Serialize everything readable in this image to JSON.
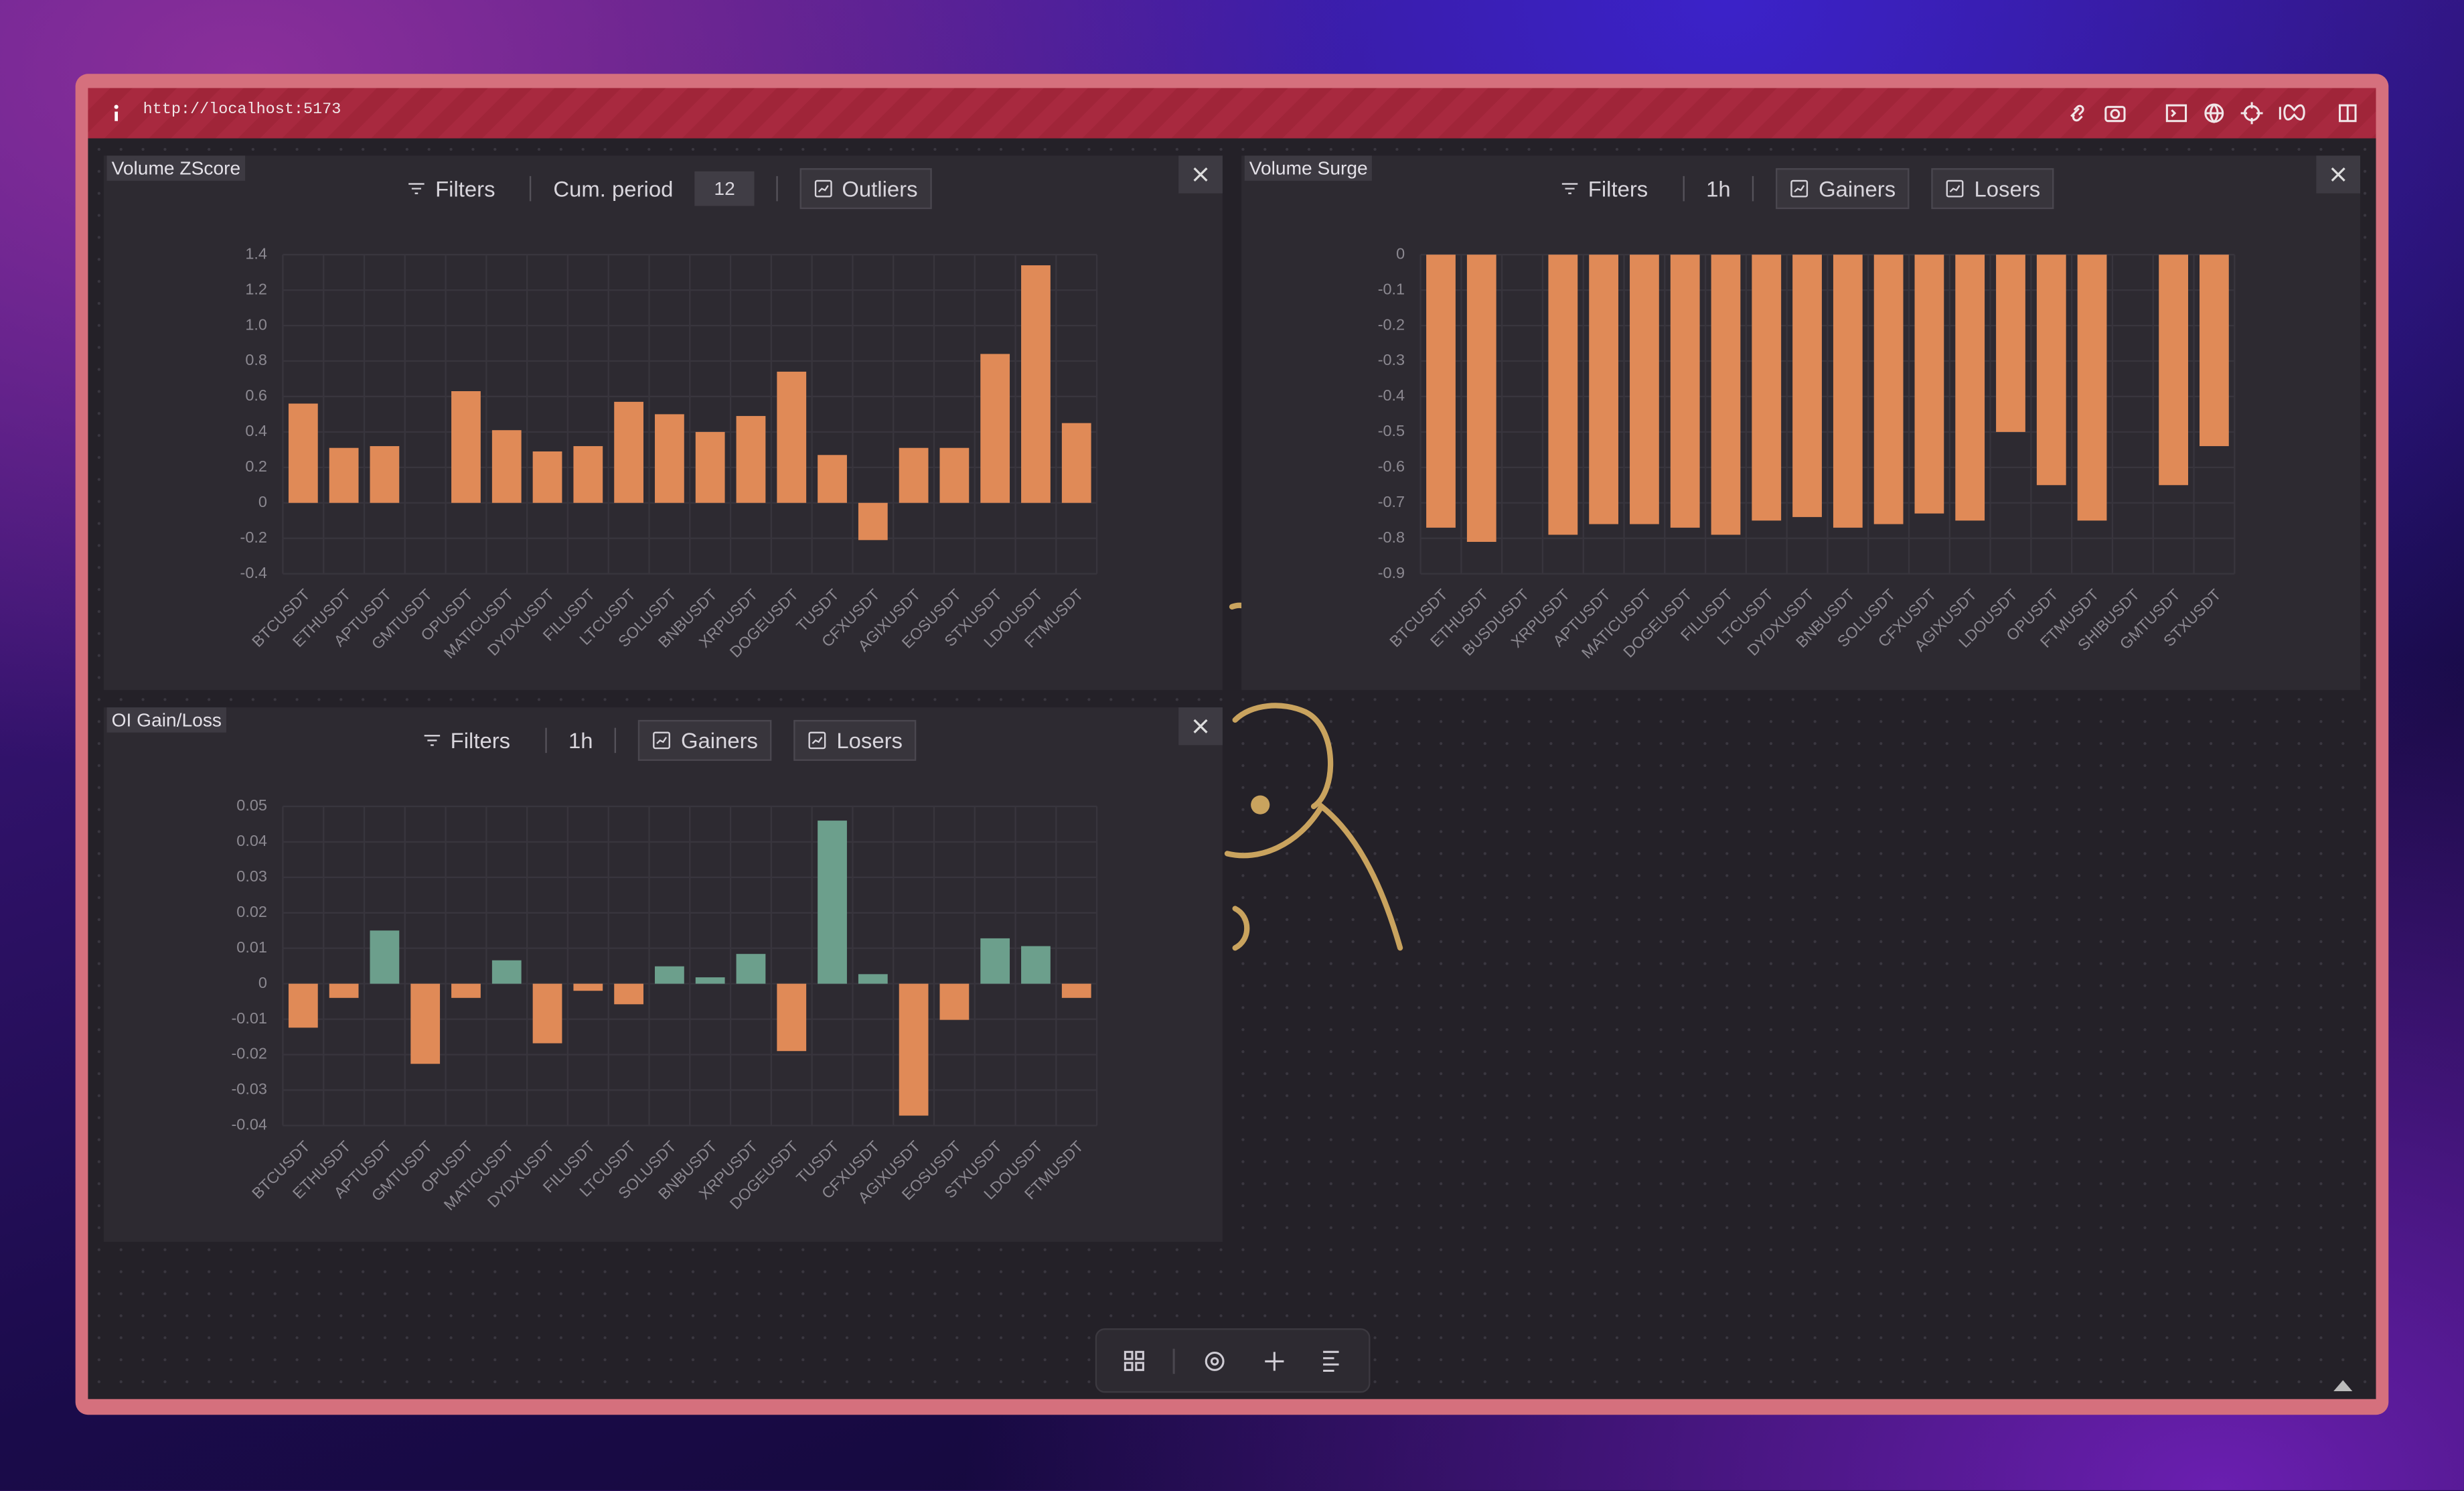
{
  "ui": {
    "url": "http://localhost:5173",
    "panels": [
      {
        "filters": "Filters",
        "period_label": "Cum. period",
        "period_value": "12",
        "buttons": [
          "Outliers"
        ]
      },
      {
        "filters": "Filters",
        "timeframe": "1h",
        "buttons": [
          "Gainers",
          "Losers"
        ]
      },
      {
        "filters": "Filters",
        "timeframe": "1h",
        "buttons": [
          "Gainers",
          "Losers"
        ]
      }
    ]
  },
  "chart_data": [
    {
      "type": "bar",
      "title": "Volume ZScore",
      "categories": [
        "BTCUSDT",
        "ETHUSDT",
        "APTUSDT",
        "GMTUSDT",
        "OPUSDT",
        "MATICUSDT",
        "DYDXUSDT",
        "FILUSDT",
        "LTCUSDT",
        "SOLUSDT",
        "BNBUSDT",
        "XRPUSDT",
        "DOGEUSDT",
        "TUSDT",
        "CFXUSDT",
        "AGIXUSDT",
        "EOSUSDT",
        "STXUSDT",
        "LDOUSDT",
        "FTMUSDT"
      ],
      "values": [
        0.56,
        0.31,
        0.32,
        0,
        0.63,
        0.41,
        0.29,
        0.32,
        0.57,
        0.5,
        0.4,
        0.49,
        0.74,
        0.27,
        -0.21,
        0.31,
        0.31,
        0.84,
        1.34,
        0.45
      ],
      "color": "#e08a57",
      "ylim": [
        -0.4,
        1.4
      ],
      "yticks": [
        -0.4,
        -0.2,
        0,
        0.2,
        0.4,
        0.6,
        0.8,
        {
          "value": 1,
          "label": "1.0"
        },
        1.2,
        1.4
      ],
      "grid": true
    },
    {
      "type": "bar",
      "title": "Volume Surge",
      "categories": [
        "BTCUSDT",
        "ETHUSDT",
        "BUSDUSDT",
        "XRPUSDT",
        "APTUSDT",
        "MATICUSDT",
        "DOGEUSDT",
        "FILUSDT",
        "LTCUSDT",
        "DYDXUSDT",
        "BNBUSDT",
        "SOLUSDT",
        "CFXUSDT",
        "AGIXUSDT",
        "LDOUSDT",
        "OPUSDT",
        "FTMUSDT",
        "SHIBUSDT",
        "GMTUSDT",
        "STXUSDT"
      ],
      "values": [
        -0.77,
        -0.81,
        0,
        -0.79,
        -0.76,
        -0.76,
        -0.77,
        -0.79,
        -0.75,
        -0.74,
        -0.77,
        -0.76,
        -0.73,
        -0.75,
        -0.5,
        -0.65,
        -0.75,
        0,
        -0.65,
        -0.54
      ],
      "color": "#e08a57",
      "ylim": [
        -0.9,
        0
      ],
      "yticks": [
        -0.9,
        -0.8,
        -0.7,
        -0.6,
        -0.5,
        -0.4,
        -0.3,
        -0.2,
        -0.1,
        0
      ],
      "grid": true
    },
    {
      "type": "bar",
      "title": "OI Gain/Loss",
      "categories": [
        "BTCUSDT",
        "ETHUSDT",
        "APTUSDT",
        "GMTUSDT",
        "OPUSDT",
        "MATICUSDT",
        "DYDXUSDT",
        "FILUSDT",
        "LTCUSDT",
        "SOLUSDT",
        "BNBUSDT",
        "XRPUSDT",
        "DOGEUSDT",
        "TUSDT",
        "CFXUSDT",
        "AGIXUSDT",
        "EOSUSDT",
        "STXUSDT",
        "LDOUSDT",
        "FTMUSDT"
      ],
      "values": [
        -0.0124,
        -0.004,
        0.015,
        -0.0226,
        -0.004,
        0.0066,
        -0.0168,
        -0.002,
        -0.0058,
        0.0049,
        0.0018,
        0.0084,
        -0.019,
        0.046,
        0.0027,
        -0.0372,
        -0.0102,
        0.0128,
        0.0106,
        -0.004
      ],
      "positive_color": "#6c9f8c",
      "negative_color": "#e08a57",
      "ylim": [
        -0.04,
        0.05
      ],
      "yticks": [
        -0.04,
        -0.03,
        -0.02,
        -0.01,
        0,
        0.01,
        0.02,
        0.03,
        0.04,
        0.05
      ],
      "grid": true
    }
  ]
}
